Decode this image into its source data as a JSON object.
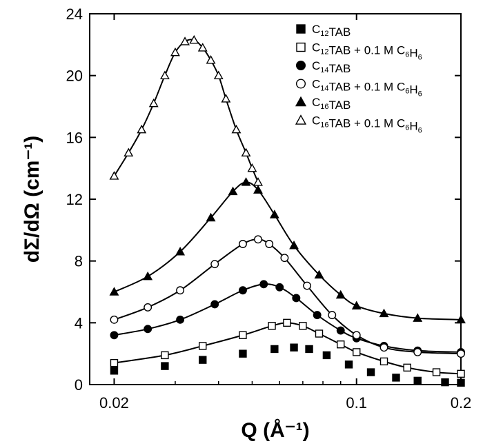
{
  "chart_data": {
    "type": "scatter",
    "x_scale": "log",
    "xlim": [
      0.017,
      0.2
    ],
    "ylim": [
      0,
      24
    ],
    "xlabel": "Q (Å⁻¹)",
    "ylabel": "dΣ/dΩ (cm⁻¹)",
    "x_ticks": [
      {
        "value": 0.02,
        "label": "0.02"
      },
      {
        "value": 0.1,
        "label": "0.1"
      },
      {
        "value": 0.2,
        "label": "0.2"
      }
    ],
    "y_ticks": [
      {
        "value": 0,
        "label": "0"
      },
      {
        "value": 4,
        "label": "4"
      },
      {
        "value": 8,
        "label": "8"
      },
      {
        "value": 12,
        "label": "12"
      },
      {
        "value": 16,
        "label": "16"
      },
      {
        "value": 20,
        "label": "20"
      },
      {
        "value": 24,
        "label": "24"
      }
    ],
    "legend_position": "top-right",
    "legend": [
      {
        "marker": "square-filled",
        "parts": [
          [
            "C",
            ""
          ],
          [
            "12",
            "sub"
          ],
          [
            "TAB",
            ""
          ]
        ]
      },
      {
        "marker": "square-open",
        "parts": [
          [
            "C",
            ""
          ],
          [
            "12",
            "sub"
          ],
          [
            "TAB + 0.1 M C",
            ""
          ],
          [
            "6",
            "sub"
          ],
          [
            "H",
            ""
          ],
          [
            "6",
            "sub"
          ]
        ]
      },
      {
        "marker": "circle-filled",
        "parts": [
          [
            "C",
            ""
          ],
          [
            "14",
            "sub"
          ],
          [
            "TAB",
            ""
          ]
        ]
      },
      {
        "marker": "circle-open",
        "parts": [
          [
            "C",
            ""
          ],
          [
            "14",
            "sub"
          ],
          [
            "TAB + 0.1 M C",
            ""
          ],
          [
            "6",
            "sub"
          ],
          [
            "H",
            ""
          ],
          [
            "6",
            "sub"
          ]
        ]
      },
      {
        "marker": "triangle-filled",
        "parts": [
          [
            "C",
            ""
          ],
          [
            "16",
            "sub"
          ],
          [
            "TAB",
            ""
          ]
        ]
      },
      {
        "marker": "triangle-open",
        "parts": [
          [
            "C",
            ""
          ],
          [
            "16",
            "sub"
          ],
          [
            "TAB + 0.1 M C",
            ""
          ],
          [
            "6",
            "sub"
          ],
          [
            "H",
            ""
          ],
          [
            "6",
            "sub"
          ]
        ]
      }
    ],
    "series": [
      {
        "marker": "square-filled",
        "has_fit": false,
        "points": [
          [
            0.02,
            0.9
          ],
          [
            0.028,
            1.2
          ],
          [
            0.036,
            1.6
          ],
          [
            0.047,
            2.0
          ],
          [
            0.058,
            2.3
          ],
          [
            0.066,
            2.4
          ],
          [
            0.073,
            2.3
          ],
          [
            0.082,
            1.9
          ],
          [
            0.095,
            1.3
          ],
          [
            0.11,
            0.8
          ],
          [
            0.13,
            0.45
          ],
          [
            0.15,
            0.25
          ],
          [
            0.18,
            0.15
          ],
          [
            0.2,
            0.12
          ]
        ]
      },
      {
        "marker": "square-open",
        "has_fit": true,
        "points": [
          [
            0.02,
            1.4
          ],
          [
            0.028,
            1.9
          ],
          [
            0.036,
            2.5
          ],
          [
            0.047,
            3.2
          ],
          [
            0.057,
            3.8
          ],
          [
            0.063,
            4.0
          ],
          [
            0.07,
            3.8
          ],
          [
            0.078,
            3.3
          ],
          [
            0.09,
            2.6
          ],
          [
            0.1,
            2.1
          ],
          [
            0.12,
            1.5
          ],
          [
            0.14,
            1.1
          ],
          [
            0.17,
            0.8
          ],
          [
            0.2,
            0.7
          ]
        ]
      },
      {
        "marker": "circle-filled",
        "has_fit": true,
        "points": [
          [
            0.02,
            3.2
          ],
          [
            0.025,
            3.6
          ],
          [
            0.031,
            4.2
          ],
          [
            0.039,
            5.2
          ],
          [
            0.047,
            6.1
          ],
          [
            0.054,
            6.5
          ],
          [
            0.06,
            6.3
          ],
          [
            0.067,
            5.6
          ],
          [
            0.077,
            4.5
          ],
          [
            0.09,
            3.5
          ],
          [
            0.1,
            3.0
          ],
          [
            0.12,
            2.5
          ],
          [
            0.15,
            2.2
          ],
          [
            0.2,
            2.1
          ]
        ]
      },
      {
        "marker": "circle-open",
        "has_fit": true,
        "points": [
          [
            0.02,
            4.2
          ],
          [
            0.025,
            5.0
          ],
          [
            0.031,
            6.1
          ],
          [
            0.039,
            7.8
          ],
          [
            0.047,
            9.1
          ],
          [
            0.052,
            9.4
          ],
          [
            0.056,
            9.1
          ],
          [
            0.062,
            8.2
          ],
          [
            0.072,
            6.4
          ],
          [
            0.085,
            4.5
          ],
          [
            0.1,
            3.2
          ],
          [
            0.12,
            2.4
          ],
          [
            0.15,
            2.1
          ],
          [
            0.2,
            2.0
          ]
        ]
      },
      {
        "marker": "triangle-filled",
        "has_fit": true,
        "points": [
          [
            0.02,
            6.0
          ],
          [
            0.025,
            7.0
          ],
          [
            0.031,
            8.6
          ],
          [
            0.038,
            10.8
          ],
          [
            0.044,
            12.5
          ],
          [
            0.048,
            13.1
          ],
          [
            0.052,
            12.6
          ],
          [
            0.058,
            11.0
          ],
          [
            0.066,
            9.0
          ],
          [
            0.078,
            7.1
          ],
          [
            0.09,
            5.8
          ],
          [
            0.1,
            5.1
          ],
          [
            0.12,
            4.6
          ],
          [
            0.15,
            4.3
          ],
          [
            0.2,
            4.2
          ]
        ]
      },
      {
        "marker": "triangle-open",
        "has_fit": true,
        "points": [
          [
            0.02,
            13.5
          ],
          [
            0.022,
            15.0
          ],
          [
            0.024,
            16.5
          ],
          [
            0.026,
            18.2
          ],
          [
            0.028,
            20.0
          ],
          [
            0.03,
            21.5
          ],
          [
            0.032,
            22.2
          ],
          [
            0.034,
            22.3
          ],
          [
            0.036,
            21.8
          ],
          [
            0.038,
            21.0
          ],
          [
            0.04,
            20.0
          ],
          [
            0.042,
            18.5
          ],
          [
            0.045,
            16.5
          ],
          [
            0.048,
            15.0
          ],
          [
            0.05,
            14.0
          ],
          [
            0.052,
            13.1
          ]
        ]
      }
    ]
  }
}
